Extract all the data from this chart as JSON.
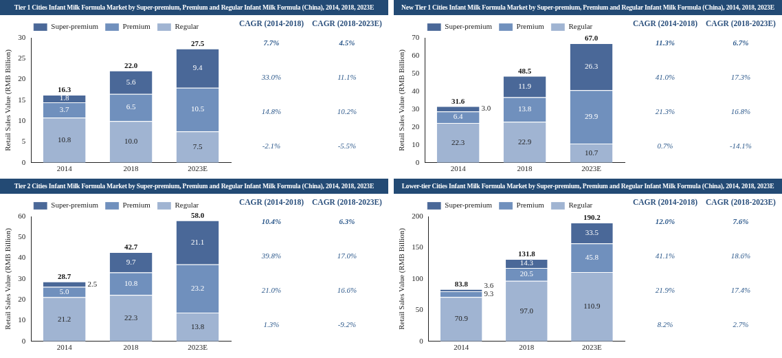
{
  "chart_data": [
    {
      "type": "bar",
      "title": "Tier 1 Cities Infant Milk Formula Market by Super-premium, Premium and Regular Infant Milk Formula (China), 2014, 2018, 2023E",
      "ylabel": "Retail Sales Value (RMB Billion)",
      "categories": [
        "2014",
        "2018",
        "2023E"
      ],
      "stacked": true,
      "data_labels": true,
      "legend": "top",
      "grid": false,
      "ylim": [
        0,
        30
      ],
      "yticks": [
        0,
        5,
        10,
        15,
        20,
        25,
        30
      ],
      "series": [
        {
          "name": "Regular",
          "color": "#a0b4d2",
          "values": [
            10.8,
            10.0,
            7.5
          ],
          "value_labels": [
            "10.8",
            "10.0",
            "7.5"
          ]
        },
        {
          "name": "Premium",
          "color": "#7090bd",
          "values": [
            3.7,
            6.5,
            10.5
          ]
        },
        {
          "name": "Super-premium",
          "color": "#4a6898",
          "values": [
            1.8,
            5.6,
            9.4
          ]
        }
      ],
      "totals": [
        "16.3",
        "22.0",
        "27.5"
      ],
      "annotations": [
        "CAGR (2014-2018)",
        "CAGR (2018-2023E)",
        "7.7%",
        "4.5%",
        "33.0%",
        "11.1%",
        "14.8%",
        "10.2%",
        "-2.1%",
        "-5.5%"
      ]
    },
    {
      "type": "bar",
      "title": "New Tier 1 Cities Infant Milk Formula Market by Super-premium, Premium and Regular Infant Milk Formula (China), 2014, 2018, 2023E",
      "ylabel": "Retail Sales Value (RMB Billion)",
      "categories": [
        "2014",
        "2018",
        "2023E"
      ],
      "stacked": true,
      "data_labels": true,
      "legend": "top",
      "grid": false,
      "ylim": [
        0,
        70
      ],
      "yticks": [
        0,
        10,
        20,
        30,
        40,
        50,
        60,
        70
      ],
      "series": [
        {
          "name": "Regular",
          "color": "#a0b4d2",
          "values": [
            22.3,
            22.9,
            10.7
          ]
        },
        {
          "name": "Premium",
          "color": "#7090bd",
          "values": [
            6.4,
            13.8,
            29.9
          ]
        },
        {
          "name": "Super-premium",
          "color": "#4a6898",
          "values": [
            3.0,
            11.9,
            26.3
          ],
          "value_labels": [
            "3.0",
            "11.9",
            "26.3"
          ]
        }
      ],
      "totals": [
        "31.6",
        "48.5",
        "67.0"
      ],
      "annotations": [
        "CAGR (2014-2018)",
        "CAGR (2018-2023E)",
        "11.3%",
        "6.7%",
        "41.0%",
        "17.3%",
        "21.3%",
        "16.8%",
        "0.7%",
        "-14.1%"
      ]
    },
    {
      "type": "bar",
      "title": "Tier 2 Cities Infant Milk Formula Market by Super-premium, Premium and Regular Infant Milk Formula (China), 2014, 2018, 2023E",
      "ylabel": "Retail Sales Value (RMB Billion)",
      "categories": [
        "2014",
        "2018",
        "2023E"
      ],
      "stacked": true,
      "data_labels": true,
      "legend": "top",
      "grid": false,
      "ylim": [
        0,
        60
      ],
      "yticks": [
        0,
        10,
        20,
        30,
        40,
        50,
        60
      ],
      "series": [
        {
          "name": "Regular",
          "color": "#a0b4d2",
          "values": [
            21.2,
            22.3,
            13.8
          ]
        },
        {
          "name": "Premium",
          "color": "#7090bd",
          "values": [
            5.0,
            10.8,
            23.2
          ],
          "value_labels": [
            "5.0",
            "10.8",
            "23.2"
          ]
        },
        {
          "name": "Super-premium",
          "color": "#4a6898",
          "values": [
            2.5,
            9.7,
            21.1
          ]
        }
      ],
      "totals": [
        "28.7",
        "42.7",
        "58.0"
      ],
      "annotations": [
        "CAGR (2014-2018)",
        "CAGR (2018-2023E)",
        "10.4%",
        "6.3%",
        "39.8%",
        "17.0%",
        "21.0%",
        "16.6%",
        "1.3%",
        "-9.2%"
      ]
    },
    {
      "type": "bar",
      "title": "Lower-tier Cities Infant Milk Formula Market by Super-premium, Premium and Regular Infant Milk Formula (China), 2014, 2018, 2023E",
      "ylabel": "Retail Sales Value (RMB Billion)",
      "categories": [
        "2014",
        "2018",
        "2023E"
      ],
      "stacked": true,
      "data_labels": true,
      "legend": "top",
      "grid": false,
      "ylim": [
        0,
        200
      ],
      "yticks": [
        0,
        50,
        100,
        150,
        200
      ],
      "series": [
        {
          "name": "Regular",
          "color": "#a0b4d2",
          "values": [
            70.9,
            97.0,
            110.9
          ],
          "value_labels": [
            "70.9",
            "97.0",
            "110.9"
          ]
        },
        {
          "name": "Premium",
          "color": "#7090bd",
          "values": [
            9.3,
            20.5,
            45.8
          ]
        },
        {
          "name": "Super-premium",
          "color": "#4a6898",
          "values": [
            3.6,
            14.3,
            33.5
          ]
        }
      ],
      "totals": [
        "83.8",
        "131.8",
        "190.2"
      ],
      "annotations": [
        "CAGR (2014-2018)",
        "CAGR (2018-2023E)",
        "12.0%",
        "7.6%",
        "41.1%",
        "18.6%",
        "21.9%",
        "17.4%",
        "8.2%",
        "2.7%"
      ]
    }
  ]
}
